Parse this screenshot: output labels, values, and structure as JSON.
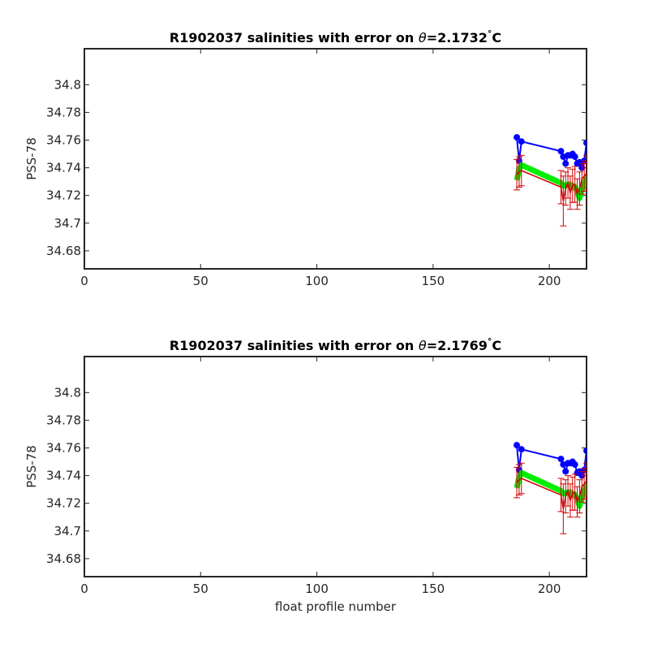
{
  "chart_data": [
    {
      "type": "line",
      "title_prefix": "R1902037 salinities with error on ",
      "theta_symbol": "θ",
      "title_value": "=2.1732",
      "title_unit": "C",
      "degree_symbol": "°",
      "xlabel": "",
      "ylabel": "PSS-78",
      "xlim": [
        0,
        216
      ],
      "ylim": [
        34.667,
        34.826
      ],
      "xticks": [
        0,
        50,
        100,
        150,
        200
      ],
      "xtick_labels": [
        "0",
        "50",
        "100",
        "150",
        "200"
      ],
      "yticks": [
        34.68,
        34.7,
        34.72,
        34.74,
        34.76,
        34.78,
        34.8
      ],
      "ytick_labels": [
        "34.68",
        "34.7",
        "34.72",
        "34.74",
        "34.76",
        "34.78",
        "34.8"
      ],
      "series": [
        {
          "style": "blue-markers",
          "color": "#0000ff",
          "x": [
            186,
            187,
            188,
            205,
            206,
            207,
            208,
            209,
            210,
            211,
            212,
            213,
            214,
            215,
            216,
            217
          ],
          "y": [
            34.762,
            34.745,
            34.759,
            34.752,
            34.748,
            34.743,
            34.749,
            34.749,
            34.75,
            34.748,
            34.743,
            34.744,
            34.74,
            34.745,
            34.758,
            34.752
          ]
        },
        {
          "style": "green-thick",
          "color": "#00ee00",
          "x": [
            186,
            187,
            188,
            205,
            206,
            207,
            208,
            209,
            210,
            211,
            212,
            213,
            214,
            215,
            216,
            217
          ],
          "y": [
            34.731,
            34.739,
            34.742,
            34.729,
            34.727,
            34.727,
            34.728,
            34.728,
            34.727,
            34.726,
            34.723,
            34.718,
            34.724,
            34.728,
            34.733,
            34.732
          ]
        },
        {
          "style": "red-errorbars",
          "color": "#d00000",
          "x": [
            186,
            187,
            188,
            205,
            206,
            207,
            208,
            209,
            210,
            211,
            212,
            213,
            214,
            215,
            216,
            217
          ],
          "y": [
            34.735,
            34.737,
            34.738,
            34.726,
            34.716,
            34.725,
            34.729,
            34.722,
            34.727,
            34.728,
            34.721,
            34.725,
            34.732,
            34.734,
            34.736,
            34.729
          ],
          "err": [
            0.011,
            0.011,
            0.011,
            0.012,
            0.018,
            0.012,
            0.011,
            0.012,
            0.012,
            0.013,
            0.011,
            0.012,
            0.011,
            0.011,
            0.013,
            0.014
          ]
        }
      ]
    },
    {
      "type": "line",
      "title_prefix": "R1902037 salinities with error on ",
      "theta_symbol": "θ",
      "title_value": "=2.1769",
      "title_unit": "C",
      "degree_symbol": "°",
      "xlabel": "float profile number",
      "ylabel": "PSS-78",
      "xlim": [
        0,
        216
      ],
      "ylim": [
        34.667,
        34.826
      ],
      "xticks": [
        0,
        50,
        100,
        150,
        200
      ],
      "xtick_labels": [
        "0",
        "50",
        "100",
        "150",
        "200"
      ],
      "yticks": [
        34.68,
        34.7,
        34.72,
        34.74,
        34.76,
        34.78,
        34.8
      ],
      "ytick_labels": [
        "34.68",
        "34.7",
        "34.72",
        "34.74",
        "34.76",
        "34.78",
        "34.8"
      ],
      "series": [
        {
          "style": "blue-markers",
          "color": "#0000ff",
          "x": [
            186,
            187,
            188,
            205,
            206,
            207,
            208,
            209,
            210,
            211,
            212,
            213,
            214,
            215,
            216,
            217
          ],
          "y": [
            34.762,
            34.744,
            34.759,
            34.752,
            34.748,
            34.743,
            34.749,
            34.749,
            34.75,
            34.748,
            34.742,
            34.743,
            34.74,
            34.744,
            34.758,
            34.752
          ]
        },
        {
          "style": "green-thick",
          "color": "#00ee00",
          "x": [
            186,
            187,
            188,
            205,
            206,
            207,
            208,
            209,
            210,
            211,
            212,
            213,
            214,
            215,
            216,
            217
          ],
          "y": [
            34.731,
            34.739,
            34.742,
            34.729,
            34.727,
            34.727,
            34.728,
            34.728,
            34.727,
            34.726,
            34.723,
            34.718,
            34.724,
            34.728,
            34.733,
            34.732
          ]
        },
        {
          "style": "red-errorbars",
          "color": "#d00000",
          "x": [
            186,
            187,
            188,
            205,
            206,
            207,
            208,
            209,
            210,
            211,
            212,
            213,
            214,
            215,
            216,
            217
          ],
          "y": [
            34.735,
            34.737,
            34.738,
            34.726,
            34.716,
            34.725,
            34.729,
            34.722,
            34.727,
            34.728,
            34.721,
            34.725,
            34.732,
            34.734,
            34.736,
            34.729
          ],
          "err": [
            0.011,
            0.011,
            0.011,
            0.012,
            0.018,
            0.012,
            0.011,
            0.012,
            0.012,
            0.013,
            0.011,
            0.012,
            0.011,
            0.011,
            0.013,
            0.014
          ]
        }
      ]
    }
  ]
}
